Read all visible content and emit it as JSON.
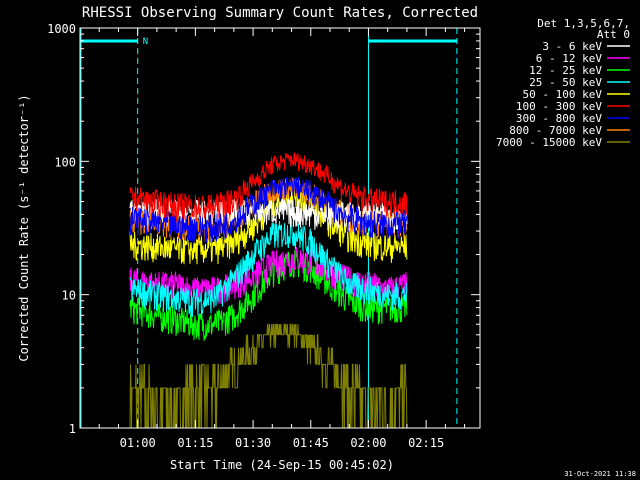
{
  "chart_data": {
    "type": "line",
    "title": "RHESSI Observing Summary Count Rates, Corrected",
    "xlabel": "Start Time (24-Sep-15 00:45:02)",
    "ylabel": "Corrected Count Rate (s⁻¹ detector⁻¹)",
    "y_scale": "log",
    "ylim": [
      1,
      1000
    ],
    "xlim_minutes": [
      0,
      104
    ],
    "x_ticks": [
      {
        "label": "01:00",
        "minute": 15
      },
      {
        "label": "01:15",
        "minute": 30
      },
      {
        "label": "01:30",
        "minute": 45
      },
      {
        "label": "01:45",
        "minute": 60
      },
      {
        "label": "02:00",
        "minute": 75
      },
      {
        "label": "02:15",
        "minute": 90
      }
    ],
    "y_ticks": [
      {
        "label": "1",
        "value": 1
      },
      {
        "label": "10",
        "value": 10
      },
      {
        "label": "100",
        "value": 100
      },
      {
        "label": "1000",
        "value": 1000
      }
    ],
    "legend": {
      "header": [
        "Det 1,3,5,6,7,",
        "Att 0"
      ],
      "placement": "right"
    },
    "series": [
      {
        "name": "3 - 6 keV",
        "color": "#ffffff",
        "x": [
          13,
          20,
          30,
          40,
          45,
          50,
          55,
          60,
          65,
          70,
          75,
          80,
          85
        ],
        "y": [
          42,
          42,
          41,
          42,
          42,
          43,
          42,
          41,
          40,
          40,
          40,
          39,
          39
        ]
      },
      {
        "name": "6 - 12 keV",
        "color": "#ff00ff",
        "x": [
          13,
          20,
          25,
          30,
          35,
          40,
          45,
          50,
          55,
          60,
          65,
          70,
          75,
          80,
          85
        ],
        "y": [
          13,
          12,
          12,
          11,
          11,
          12,
          14,
          17,
          19,
          18,
          15,
          13,
          12,
          11,
          12
        ]
      },
      {
        "name": "12 - 25 keV",
        "color": "#00ff00",
        "x": [
          13,
          20,
          25,
          30,
          35,
          40,
          45,
          50,
          55,
          60,
          65,
          70,
          75,
          80,
          85
        ],
        "y": [
          8,
          7,
          6.5,
          6,
          6,
          7,
          10,
          15,
          18,
          16,
          12,
          9,
          8,
          8,
          8
        ]
      },
      {
        "name": "25 - 50 keV",
        "color": "#00ffff",
        "x": [
          13,
          20,
          25,
          30,
          35,
          40,
          45,
          50,
          55,
          60,
          65,
          70,
          75,
          80,
          85
        ],
        "y": [
          11,
          10,
          9.5,
          9,
          9.5,
          13,
          20,
          28,
          30,
          25,
          17,
          12,
          11,
          10,
          10
        ]
      },
      {
        "name": "50 - 100 keV",
        "color": "#ffff00",
        "x": [
          13,
          20,
          25,
          30,
          35,
          40,
          45,
          50,
          55,
          60,
          65,
          70,
          75,
          80,
          85
        ],
        "y": [
          24,
          23,
          22,
          22,
          22,
          25,
          33,
          48,
          58,
          50,
          35,
          27,
          24,
          23,
          23
        ]
      },
      {
        "name": "100 - 300 keV",
        "color": "#ff0000",
        "x": [
          13,
          20,
          25,
          30,
          35,
          40,
          45,
          50,
          55,
          60,
          65,
          70,
          75,
          80,
          85
        ],
        "y": [
          54,
          50,
          47,
          46,
          46,
          52,
          70,
          95,
          104,
          95,
          75,
          58,
          52,
          50,
          50
        ]
      },
      {
        "name": "300 - 800 keV",
        "color": "#0000ff",
        "x": [
          13,
          20,
          25,
          30,
          35,
          40,
          45,
          50,
          55,
          60,
          65,
          70,
          75,
          80,
          85
        ],
        "y": [
          37,
          35,
          33,
          32,
          32,
          36,
          48,
          62,
          66,
          60,
          47,
          38,
          35,
          34,
          34
        ]
      },
      {
        "name": "800 - 7000 keV",
        "color": "#ff8000",
        "x": [
          13,
          20,
          25,
          30,
          35,
          40,
          45,
          50,
          55,
          60,
          65,
          70,
          75,
          80,
          85
        ],
        "y": [
          38,
          36,
          34,
          33,
          33,
          37,
          48,
          62,
          64,
          58,
          46,
          39,
          36,
          35,
          35
        ]
      },
      {
        "name": "7000 - 15000 keV",
        "color": "#808000",
        "x": [
          13,
          20,
          25,
          30,
          35,
          40,
          45,
          50,
          55,
          60,
          65,
          70,
          75,
          80,
          85
        ],
        "y": [
          2,
          1.5,
          1.5,
          2,
          2,
          3,
          4,
          5,
          5.5,
          4,
          3,
          2,
          1.5,
          1.5,
          2
        ]
      }
    ],
    "attenuator_markers": {
      "label": "N",
      "solid_lines_minute": [
        0,
        75
      ],
      "dashed_lines_minute": [
        15,
        98
      ],
      "top_bars_minute": [
        [
          0,
          15
        ],
        [
          75,
          98
        ]
      ],
      "color": "#00ffff"
    },
    "footer_timestamp": "31-Oct-2021 11:38"
  }
}
